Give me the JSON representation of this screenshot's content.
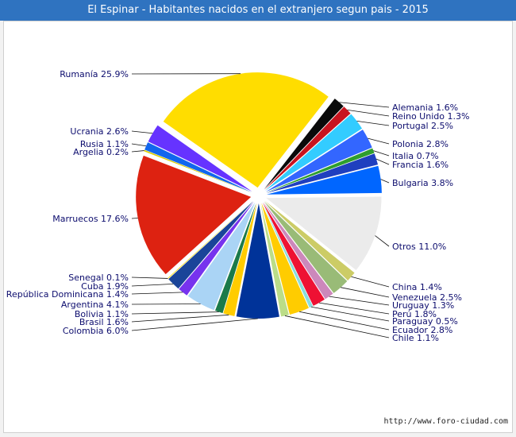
{
  "chart_data": {
    "type": "pie",
    "title": "El Espinar - Habitantes nacidos en el extranjero segun pais - 2015",
    "slices": [
      {
        "label": "Rumanía 25.9%",
        "value": 25.9,
        "color": "#ffdd00"
      },
      {
        "label": "Alemania 1.6%",
        "value": 1.6,
        "color": "#0a0a0a"
      },
      {
        "label": "Reino Unido 1.3%",
        "value": 1.3,
        "color": "#c8141e"
      },
      {
        "label": "Portugal 2.5%",
        "value": 2.5,
        "color": "#33ccff"
      },
      {
        "label": "Polonia 2.8%",
        "value": 2.8,
        "color": "#3366ff"
      },
      {
        "label": "Italia 0.7%",
        "value": 0.7,
        "color": "#2e9e2e"
      },
      {
        "label": "Francia 1.6%",
        "value": 1.6,
        "color": "#1f3fbf"
      },
      {
        "label": "Bulgaria 3.8%",
        "value": 3.8,
        "color": "#0066ff"
      },
      {
        "label": "Otros 11.0%",
        "value": 11.0,
        "color": "#ebebeb"
      },
      {
        "label": "China 1.4%",
        "value": 1.4,
        "color": "#cccc66"
      },
      {
        "label": "Venezuela 2.5%",
        "value": 2.5,
        "color": "#99bb77"
      },
      {
        "label": "Uruguay 1.3%",
        "value": 1.3,
        "color": "#cc88bb"
      },
      {
        "label": "Perú 1.8%",
        "value": 1.8,
        "color": "#ee1133"
      },
      {
        "label": "Paraguay 0.5%",
        "value": 0.5,
        "color": "#88dddd"
      },
      {
        "label": "Ecuador 2.8%",
        "value": 2.8,
        "color": "#ffcc00"
      },
      {
        "label": "Chile 1.1%",
        "value": 1.1,
        "color": "#bbdd88"
      },
      {
        "label": "Colombia 6.0%",
        "value": 6.0,
        "color": "#003399"
      },
      {
        "label": "Brasil 1.6%",
        "value": 1.6,
        "color": "#ffcc00"
      },
      {
        "label": "Bolivia 1.1%",
        "value": 1.1,
        "color": "#1b7a4a"
      },
      {
        "label": "Argentina 4.1%",
        "value": 4.1,
        "color": "#aad4f5"
      },
      {
        "label": "República Dominicana 1.4%",
        "value": 1.4,
        "color": "#7733ee"
      },
      {
        "label": "Cuba 1.9%",
        "value": 1.9,
        "color": "#1a4499"
      },
      {
        "label": "Senegal 0.1%",
        "value": 0.1,
        "color": "#ffdd00"
      },
      {
        "label": "Marruecos 17.6%",
        "value": 17.6,
        "color": "#dd2211"
      },
      {
        "label": "Argelia 0.2%",
        "value": 0.2,
        "color": "#ddcc00"
      },
      {
        "label": "Rusia 1.1%",
        "value": 1.1,
        "color": "#1166ee"
      },
      {
        "label": "Ucrania 2.6%",
        "value": 2.6,
        "color": "#6633ff"
      }
    ]
  },
  "footer": {
    "source": "http://www.foro-ciudad.com"
  }
}
